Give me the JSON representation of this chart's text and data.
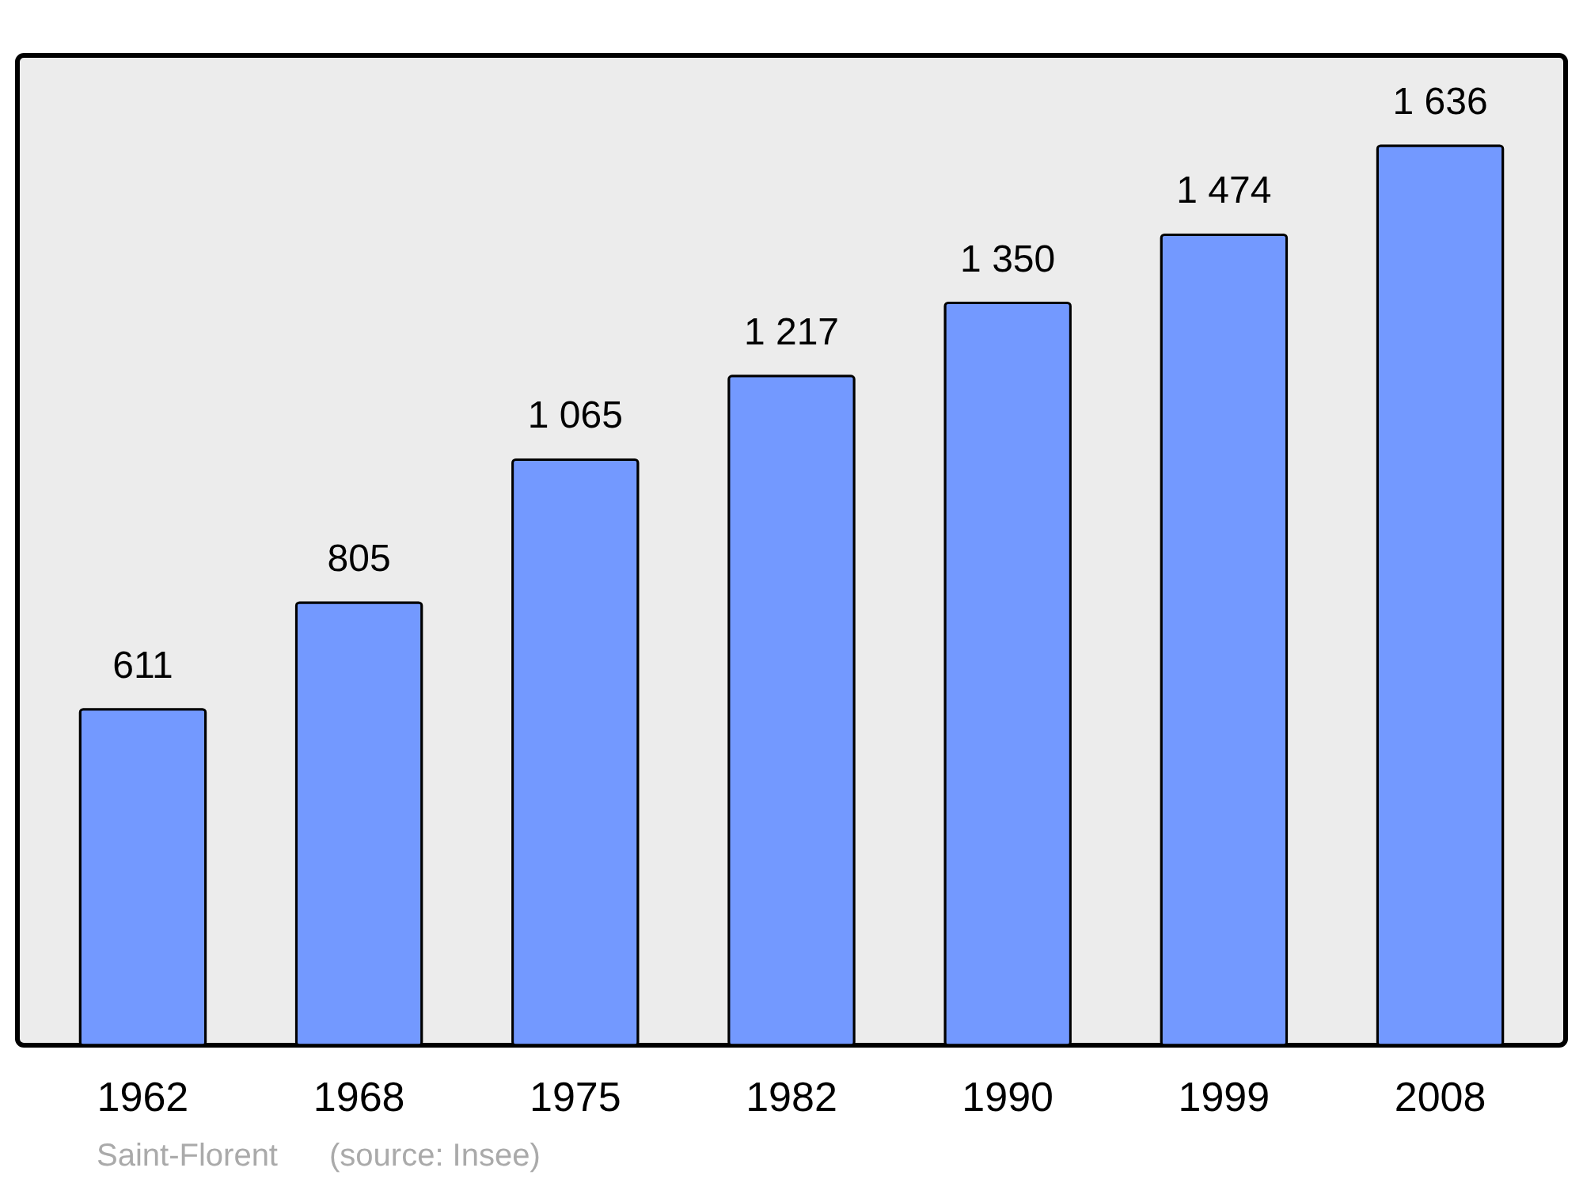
{
  "chart_data": {
    "type": "bar",
    "categories": [
      "1962",
      "1968",
      "1975",
      "1982",
      "1990",
      "1999",
      "2008"
    ],
    "values": [
      611,
      805,
      1065,
      1217,
      1350,
      1474,
      1636
    ],
    "value_labels": [
      "611",
      "805",
      "1 065",
      "1 217",
      "1 350",
      "1 474",
      "1 636"
    ],
    "color": "#7399ff",
    "ylim": [
      0,
      1800
    ],
    "annotations": [
      "Saint-Florent",
      "(source: Insee)"
    ]
  }
}
